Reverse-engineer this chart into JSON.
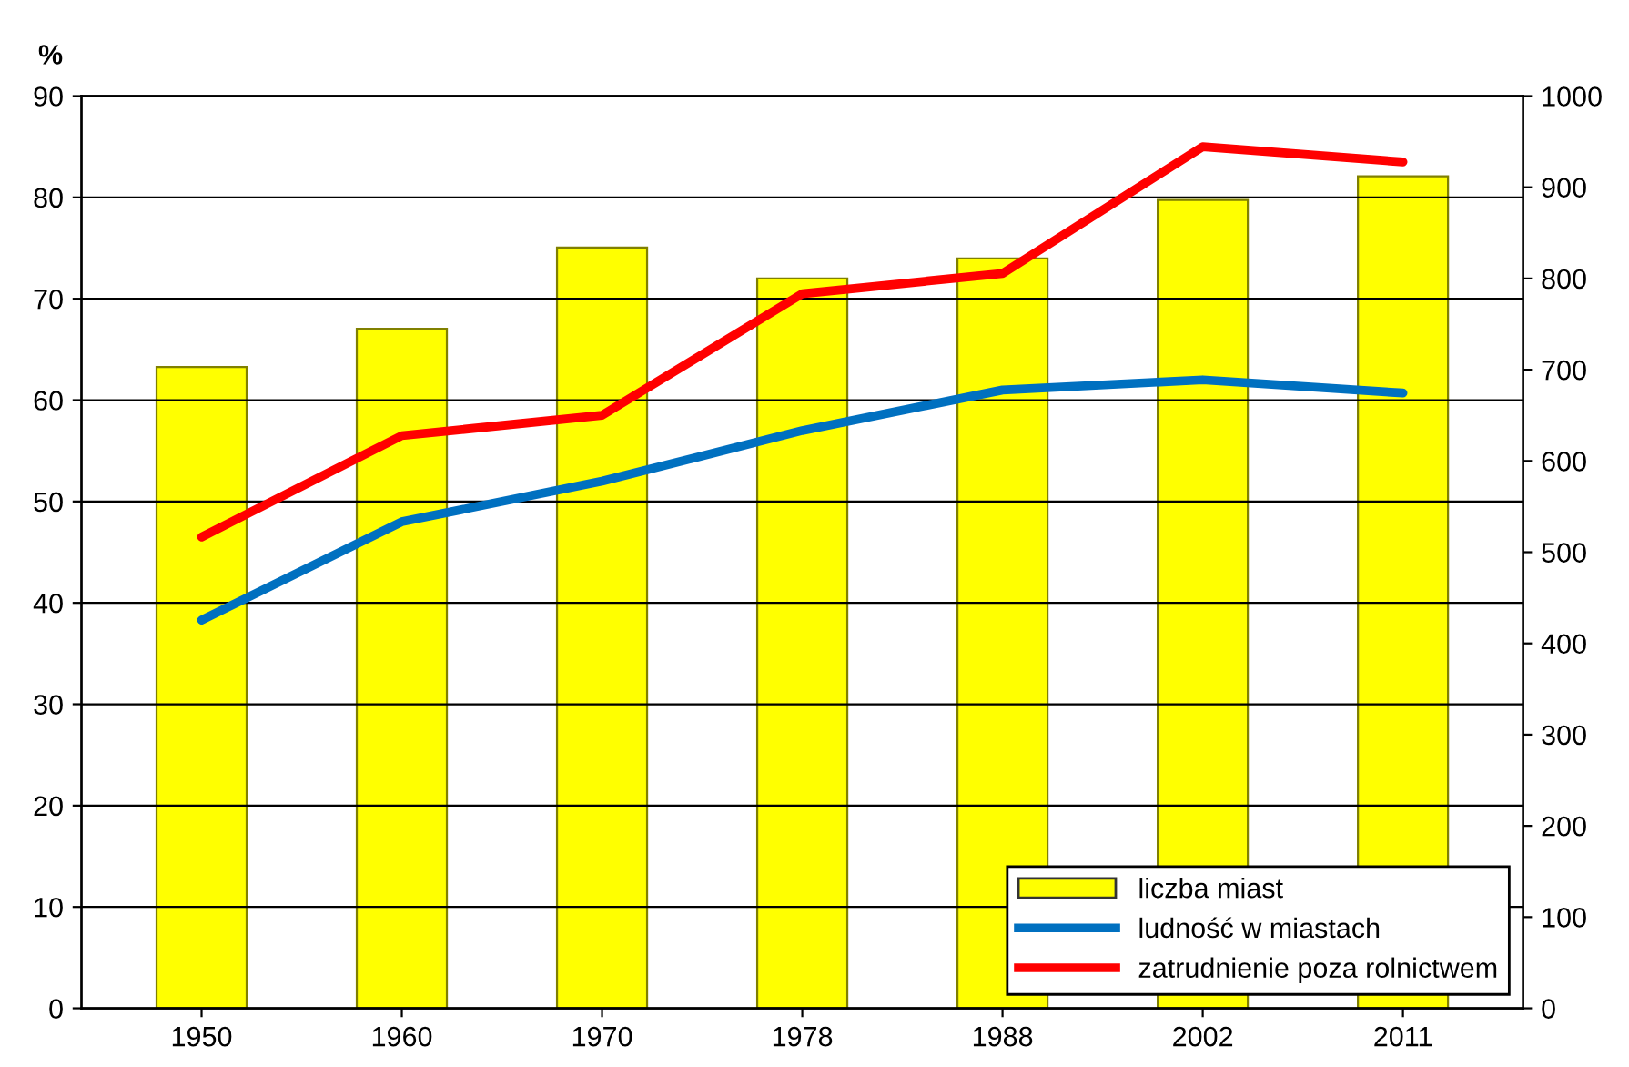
{
  "chart_data": {
    "type": "bar",
    "categories": [
      "1950",
      "1960",
      "1970",
      "1978",
      "1988",
      "2002",
      "2011"
    ],
    "ylabel": "%",
    "ylim": [
      0,
      90
    ],
    "yticks": [
      0,
      10,
      20,
      30,
      40,
      50,
      60,
      70,
      80,
      90
    ],
    "y2lim": [
      0,
      1000
    ],
    "y2ticks": [
      0,
      100,
      200,
      300,
      400,
      500,
      600,
      700,
      800,
      900,
      1000
    ],
    "grid": "y",
    "legend": "bottom right",
    "series": [
      {
        "name": "liczba miast",
        "axis": "y2",
        "color": "#ffff00",
        "values": [
          703,
          745,
          834,
          800,
          822,
          886,
          912
        ]
      },
      {
        "name": "ludność w miastach",
        "type": "line",
        "axis": "y",
        "color": "#0070c0",
        "values": [
          38.3,
          48,
          52,
          57,
          61,
          62,
          60.7
        ]
      },
      {
        "name": "zatrudnienie poza rolnictwem",
        "type": "line",
        "axis": "y",
        "color": "#ff0000",
        "values": [
          46.5,
          56.5,
          58.5,
          70.5,
          72.5,
          85,
          83.5
        ]
      }
    ]
  }
}
